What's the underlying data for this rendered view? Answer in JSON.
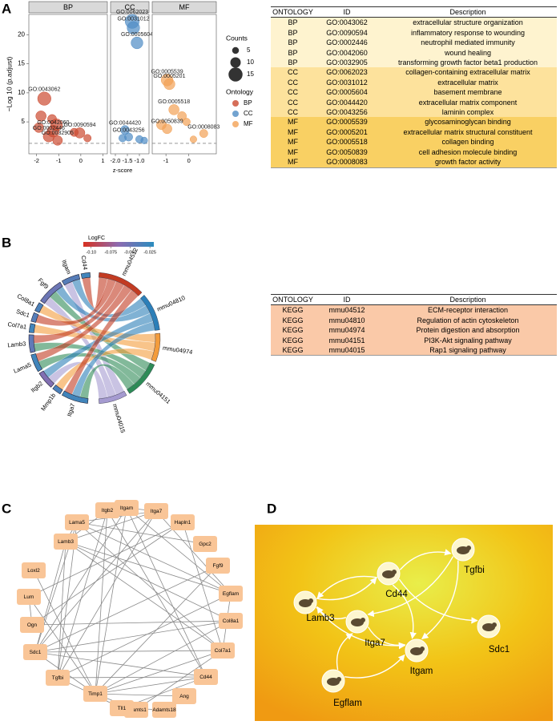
{
  "panel_labels": [
    "A",
    "B",
    "C",
    "D"
  ],
  "chart_data": [
    {
      "type": "scatter",
      "y_label": "−Log 10 (p.adjust)",
      "x_label": "z-score",
      "ylim": [
        -0.5,
        23.5
      ],
      "yticks": [
        5,
        10,
        15,
        20
      ],
      "threshold": 1.3,
      "size_legend_title": "Counts",
      "size_legend": [
        5,
        10,
        15
      ],
      "color_legend_title": "Ontology",
      "facets": [
        {
          "name": "BP",
          "color": "#cc4a30",
          "xlim": [
            -2.35,
            1.2
          ],
          "xticks": [
            -2,
            -1,
            0,
            1
          ],
          "points": {
            "labels": [
              "GO:0043062",
              "GO:0042060",
              "GO:0090594",
              "GO:0002446",
              "GO:0032905",
              null,
              null,
              null,
              null,
              null,
              null
            ],
            "x": [
              -1.65,
              -1.25,
              -0.05,
              -1.45,
              -1.05,
              -1.8,
              -1.3,
              -1.1,
              -0.3,
              0.3,
              -1.9
            ],
            "y": [
              9,
              3.4,
              3.1,
              2.5,
              1.8,
              6,
              5.5,
              4.5,
              3.2,
              2.2,
              4
            ],
            "counts": [
              14,
              12,
              10,
              11,
              9,
              10,
              8,
              12,
              7,
              6,
              9
            ]
          }
        },
        {
          "name": "CC",
          "color": "#4f8cc4",
          "xlim": [
            -2.2,
            -0.6
          ],
          "xticks": [
            {
              "value": -2,
              "label": "-2.0"
            },
            -1.5,
            {
              "value": -1,
              "label": "-1.0"
            }
          ],
          "points": {
            "labels": [
              "GO:0062023",
              "GO:0031012",
              "GO:0005604",
              "GO:0044420",
              "GO:0043256",
              null,
              null,
              null
            ],
            "x": [
              -1.3,
              -1.25,
              -1.1,
              -1.6,
              -1.45,
              -1.7,
              -1.0,
              -0.8
            ],
            "y": [
              22.3,
              21.2,
              18.6,
              3.6,
              2.4,
              2.2,
              2.0,
              1.8
            ],
            "counts": [
              15,
              13,
              12,
              8,
              7,
              6,
              6,
              5
            ]
          }
        },
        {
          "name": "MF",
          "color": "#f2a155",
          "xlim": [
            -1.6,
            1.2
          ],
          "xticks": [
            -1,
            0
          ],
          "points": {
            "labels": [
              "GO:0005539",
              "GO:0005201",
              "GO:0005518",
              "GO:0050839",
              "GO:0008083",
              null,
              null,
              null,
              null
            ],
            "x": [
              -0.95,
              -0.85,
              -0.65,
              -0.95,
              0.65,
              -0.3,
              -0.1,
              -1.2,
              0.2
            ],
            "y": [
              12.2,
              11.5,
              7.1,
              3.8,
              3.0,
              6,
              5,
              4.5,
              2
            ],
            "counts": [
              12,
              11,
              10,
              9,
              7,
              8,
              6,
              9,
              5
            ]
          }
        }
      ]
    },
    {
      "type": "chord",
      "legend_title": "LogFC",
      "clim": [
        -0.11,
        -0.02
      ],
      "cticks": [
        {
          "value": -0.1,
          "label": "-0.10"
        },
        -0.075,
        {
          "value": -0.05,
          "label": "-0.050"
        },
        -0.025
      ],
      "colormap": [
        "#d7301f",
        "#8c6bb1",
        "#2b8cbe"
      ],
      "genes": {
        "names": [
          "Cd44",
          "Itgam",
          "Fgf9",
          "Col8a1",
          "Sdc1",
          "Col7a1",
          "Lamb3",
          "Lama5",
          "Itgb2",
          "Mmp1b",
          "Itga7"
        ],
        "logfc": [
          -0.03,
          -0.04,
          -0.05,
          -0.035,
          -0.04,
          -0.03,
          -0.045,
          -0.03,
          -0.06,
          -0.035,
          -0.03
        ]
      },
      "pathways": {
        "names": [
          "mmu04512",
          "mmu04810",
          "mmu04974",
          "mmu04151",
          "mmu04015"
        ],
        "colors": [
          "#c23b22",
          "#2c7fb8",
          "#f39c3c",
          "#2e8b57",
          "#a59bd0"
        ]
      },
      "links": [
        [
          0,
          0
        ],
        [
          1,
          1
        ],
        [
          1,
          4
        ],
        [
          2,
          1
        ],
        [
          2,
          3
        ],
        [
          2,
          4
        ],
        [
          3,
          2
        ],
        [
          4,
          0
        ],
        [
          5,
          2
        ],
        [
          6,
          0
        ],
        [
          6,
          3
        ],
        [
          7,
          0
        ],
        [
          7,
          3
        ],
        [
          8,
          1
        ],
        [
          8,
          4
        ],
        [
          9,
          2
        ],
        [
          10,
          0
        ],
        [
          10,
          1
        ],
        [
          10,
          3
        ]
      ]
    }
  ],
  "table_a": {
    "columns": [
      "ONTOLOGY",
      "ID",
      "Description"
    ],
    "group_colors": {
      "BP": "#fef3cf",
      "CC": "#fde29c",
      "MF": "#f9d063"
    },
    "rows": [
      [
        "BP",
        "GO:0043062",
        "extracellular structure organization"
      ],
      [
        "BP",
        "GO:0090594",
        "inflammatory response to wounding"
      ],
      [
        "BP",
        "GO:0002446",
        "neutrophil mediated immunity"
      ],
      [
        "BP",
        "GO:0042060",
        "wound healing"
      ],
      [
        "BP",
        "GO:0032905",
        "transforming growth factor beta1 production"
      ],
      [
        "CC",
        "GO:0062023",
        "collagen-containing extracellular matrix"
      ],
      [
        "CC",
        "GO:0031012",
        "extracellular matrix"
      ],
      [
        "CC",
        "GO:0005604",
        "basement membrane"
      ],
      [
        "CC",
        "GO:0044420",
        "extracellular matrix component"
      ],
      [
        "CC",
        "GO:0043256",
        "laminin complex"
      ],
      [
        "MF",
        "GO:0005539",
        "glycosaminoglycan binding"
      ],
      [
        "MF",
        "GO:0005201",
        "extracellular matrix structural constituent"
      ],
      [
        "MF",
        "GO:0005518",
        "collagen binding"
      ],
      [
        "MF",
        "GO:0050839",
        "cell adhesion molecule binding"
      ],
      [
        "MF",
        "GO:0008083",
        "growth factor activity"
      ]
    ]
  },
  "table_b": {
    "columns": [
      "ONTOLOGY",
      "ID",
      "Description"
    ],
    "row_color": "#fac9a8",
    "rows": [
      [
        "KEGG",
        "mmu04512",
        "ECM-receptor interaction"
      ],
      [
        "KEGG",
        "mmu04810",
        "Regulation of actin cytoskeleton"
      ],
      [
        "KEGG",
        "mmu04974",
        "Protein digestion and absorption"
      ],
      [
        "KEGG",
        "mmu04151",
        "PI3K-Akt signaling pathway"
      ],
      [
        "KEGG",
        "mmu04015",
        "Rap1 signaling pathway"
      ]
    ]
  },
  "network_c": {
    "nodes": [
      "Itgam",
      "Itga7",
      "Hapln1",
      "Gpc2",
      "Fgf9",
      "Egflam",
      "Col8a1",
      "Col7a1",
      "Cd44",
      "Ang",
      "Adamts18",
      "Adamts1",
      "Tll1",
      "Timp1",
      "Tgfbi",
      "Sdc1",
      "Ogn",
      "Lum",
      "Loxl2",
      "Lamb3",
      "Lama5",
      "Itgb2"
    ],
    "edges": [
      [
        0,
        21
      ],
      [
        0,
        8
      ],
      [
        0,
        5
      ],
      [
        0,
        15
      ],
      [
        0,
        1
      ],
      [
        0,
        13
      ],
      [
        1,
        20
      ],
      [
        1,
        19
      ],
      [
        1,
        5
      ],
      [
        1,
        15
      ],
      [
        1,
        14
      ],
      [
        2,
        17
      ],
      [
        2,
        16
      ],
      [
        2,
        7
      ],
      [
        3,
        20
      ],
      [
        4,
        15
      ],
      [
        4,
        13
      ],
      [
        5,
        20
      ],
      [
        5,
        19
      ],
      [
        5,
        14
      ],
      [
        5,
        7
      ],
      [
        6,
        16
      ],
      [
        6,
        13
      ],
      [
        6,
        19
      ],
      [
        7,
        19
      ],
      [
        7,
        20
      ],
      [
        7,
        15
      ],
      [
        7,
        13
      ],
      [
        8,
        15
      ],
      [
        8,
        14
      ],
      [
        8,
        21
      ],
      [
        8,
        13
      ],
      [
        8,
        12
      ],
      [
        9,
        13
      ],
      [
        11,
        13
      ],
      [
        10,
        12
      ],
      [
        11,
        12
      ],
      [
        12,
        14
      ],
      [
        13,
        15
      ],
      [
        13,
        21
      ],
      [
        14,
        19
      ],
      [
        14,
        20
      ],
      [
        15,
        19
      ],
      [
        15,
        20
      ],
      [
        16,
        17
      ],
      [
        17,
        13
      ],
      [
        19,
        20
      ],
      [
        21,
        19
      ],
      [
        21,
        14
      ],
      [
        6,
        15
      ],
      [
        7,
        11
      ],
      [
        18,
        13
      ]
    ],
    "node_color": "#f9c597"
  },
  "network_d": {
    "nodes": [
      "Tgfbi",
      "Cd44",
      "Lamb3",
      "Itga7",
      "Itgam",
      "Sdc1",
      "Egflam"
    ],
    "edges": [
      [
        1,
        0
      ],
      [
        1,
        2
      ],
      [
        1,
        4
      ],
      [
        1,
        5
      ],
      [
        3,
        2
      ],
      [
        3,
        4
      ],
      [
        6,
        3
      ],
      [
        6,
        4
      ],
      [
        0,
        4
      ],
      [
        2,
        4
      ],
      [
        0,
        3
      ],
      [
        2,
        1
      ]
    ]
  }
}
